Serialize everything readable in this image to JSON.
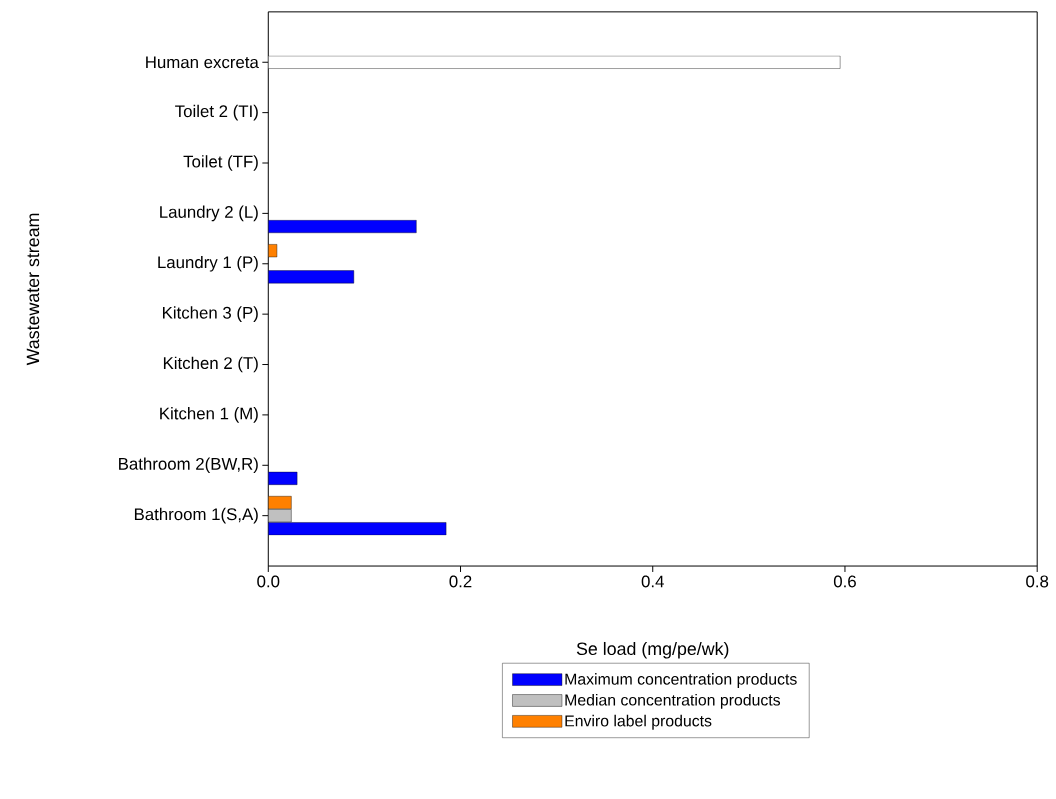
{
  "chart_data": {
    "type": "bar",
    "orientation": "horizontal",
    "xlabel": "Se load (mg/pe/wk)",
    "ylabel": "Wastewater stream",
    "categories": [
      "Human excreta",
      "Toilet 2 (TI)",
      "Toilet (TF)",
      "Laundry 2 (L)",
      "Laundry 1 (P)",
      "Kitchen 3 (P)",
      "Kitchen 2 (T)",
      "Kitchen 1 (M)",
      "Bathroom 2(BW,R)",
      "Bathroom 1(S,A)"
    ],
    "series": [
      {
        "name": "Maximum concentration products",
        "color": "#0000ff",
        "values": [
          null,
          null,
          null,
          0.154,
          0.089,
          null,
          null,
          null,
          0.03,
          0.185
        ]
      },
      {
        "name": "Median concentration products",
        "color": "#c0c0c0",
        "values": [
          null,
          null,
          null,
          null,
          null,
          null,
          null,
          null,
          null,
          0.024
        ]
      },
      {
        "name": "Enviro label products",
        "color": "#ff8000",
        "values": [
          null,
          null,
          null,
          null,
          0.009,
          null,
          null,
          null,
          null,
          0.024
        ]
      },
      {
        "color": "#ffffff",
        "values": [
          0.595,
          null,
          null,
          null,
          null,
          null,
          null,
          null,
          null,
          null
        ]
      }
    ],
    "xlim": [
      0,
      0.8
    ],
    "xticks": [
      {
        "value": 0,
        "label": "0.0"
      },
      {
        "value": 0.2,
        "label": "0.2"
      },
      {
        "value": 0.4,
        "label": "0.4"
      },
      {
        "value": 0.6,
        "label": "0.6"
      },
      {
        "value": 0.8,
        "label": "0.8"
      }
    ],
    "legend": "bottom",
    "grid": false
  }
}
